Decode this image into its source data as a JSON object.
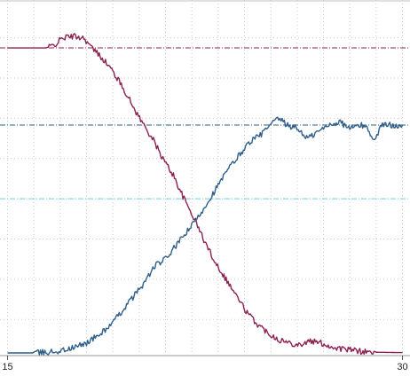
{
  "chart_data": {
    "type": "line",
    "title": "",
    "xlabel": "",
    "ylabel": "",
    "xlim": [
      14.95,
      30.05
    ],
    "ylim": [
      0,
      1.0
    ],
    "x_ticks": [
      15,
      30
    ],
    "x_tick_labels": [
      "15",
      "30"
    ],
    "grid": true,
    "legend": "none",
    "series": [
      {
        "color": "#8b2252",
        "points": [
          [
            15.0,
            0.91
          ],
          [
            16.5,
            0.91
          ],
          [
            16.8,
            0.92
          ],
          [
            17.1,
            0.94
          ],
          [
            17.5,
            0.945
          ],
          [
            17.9,
            0.94
          ],
          [
            18.2,
            0.91
          ],
          [
            18.6,
            0.88
          ],
          [
            19.0,
            0.84
          ],
          [
            19.4,
            0.79
          ],
          [
            19.8,
            0.73
          ],
          [
            20.1,
            0.69
          ],
          [
            20.5,
            0.64
          ],
          [
            20.9,
            0.58
          ],
          [
            21.3,
            0.53
          ],
          [
            21.7,
            0.46
          ],
          [
            22.1,
            0.4
          ],
          [
            22.5,
            0.33
          ],
          [
            22.9,
            0.27
          ],
          [
            23.3,
            0.22
          ],
          [
            23.7,
            0.17
          ],
          [
            24.1,
            0.12
          ],
          [
            24.5,
            0.085
          ],
          [
            24.9,
            0.06
          ],
          [
            25.3,
            0.04
          ],
          [
            25.7,
            0.03
          ],
          [
            26.1,
            0.025
          ],
          [
            26.5,
            0.035
          ],
          [
            26.9,
            0.03
          ],
          [
            27.3,
            0.018
          ],
          [
            27.7,
            0.012
          ],
          [
            28.1,
            0.008
          ],
          [
            28.5,
            0.004
          ],
          [
            29.0,
            0.002
          ],
          [
            30.0,
            0.001
          ]
        ]
      },
      {
        "color": "#2f5f8a",
        "points": [
          [
            15.0,
            0.0
          ],
          [
            16.0,
            0.0
          ],
          [
            16.5,
            0.002
          ],
          [
            17.0,
            0.006
          ],
          [
            17.5,
            0.015
          ],
          [
            18.0,
            0.03
          ],
          [
            18.5,
            0.055
          ],
          [
            19.0,
            0.09
          ],
          [
            19.4,
            0.13
          ],
          [
            19.8,
            0.17
          ],
          [
            20.2,
            0.21
          ],
          [
            20.6,
            0.26
          ],
          [
            21.0,
            0.28
          ],
          [
            21.4,
            0.32
          ],
          [
            21.8,
            0.36
          ],
          [
            22.2,
            0.4
          ],
          [
            22.6,
            0.45
          ],
          [
            23.0,
            0.5
          ],
          [
            23.4,
            0.55
          ],
          [
            23.8,
            0.59
          ],
          [
            24.2,
            0.63
          ],
          [
            24.6,
            0.65
          ],
          [
            25.0,
            0.68
          ],
          [
            25.3,
            0.7
          ],
          [
            25.6,
            0.68
          ],
          [
            26.0,
            0.67
          ],
          [
            26.4,
            0.64
          ],
          [
            26.8,
            0.66
          ],
          [
            27.2,
            0.68
          ],
          [
            27.6,
            0.69
          ],
          [
            28.0,
            0.67
          ],
          [
            28.4,
            0.68
          ],
          [
            28.7,
            0.67
          ],
          [
            28.9,
            0.63
          ],
          [
            29.2,
            0.68
          ],
          [
            30.0,
            0.68
          ]
        ]
      }
    ],
    "reference_lines": [
      {
        "y": 0.91,
        "color": "#8b2252",
        "style": "dash-dot"
      },
      {
        "y": 0.68,
        "color": "#2f5f8a",
        "style": "dash-dot"
      },
      {
        "y": 0.46,
        "color": "#66d4e6",
        "style": "dash-dot"
      }
    ]
  }
}
